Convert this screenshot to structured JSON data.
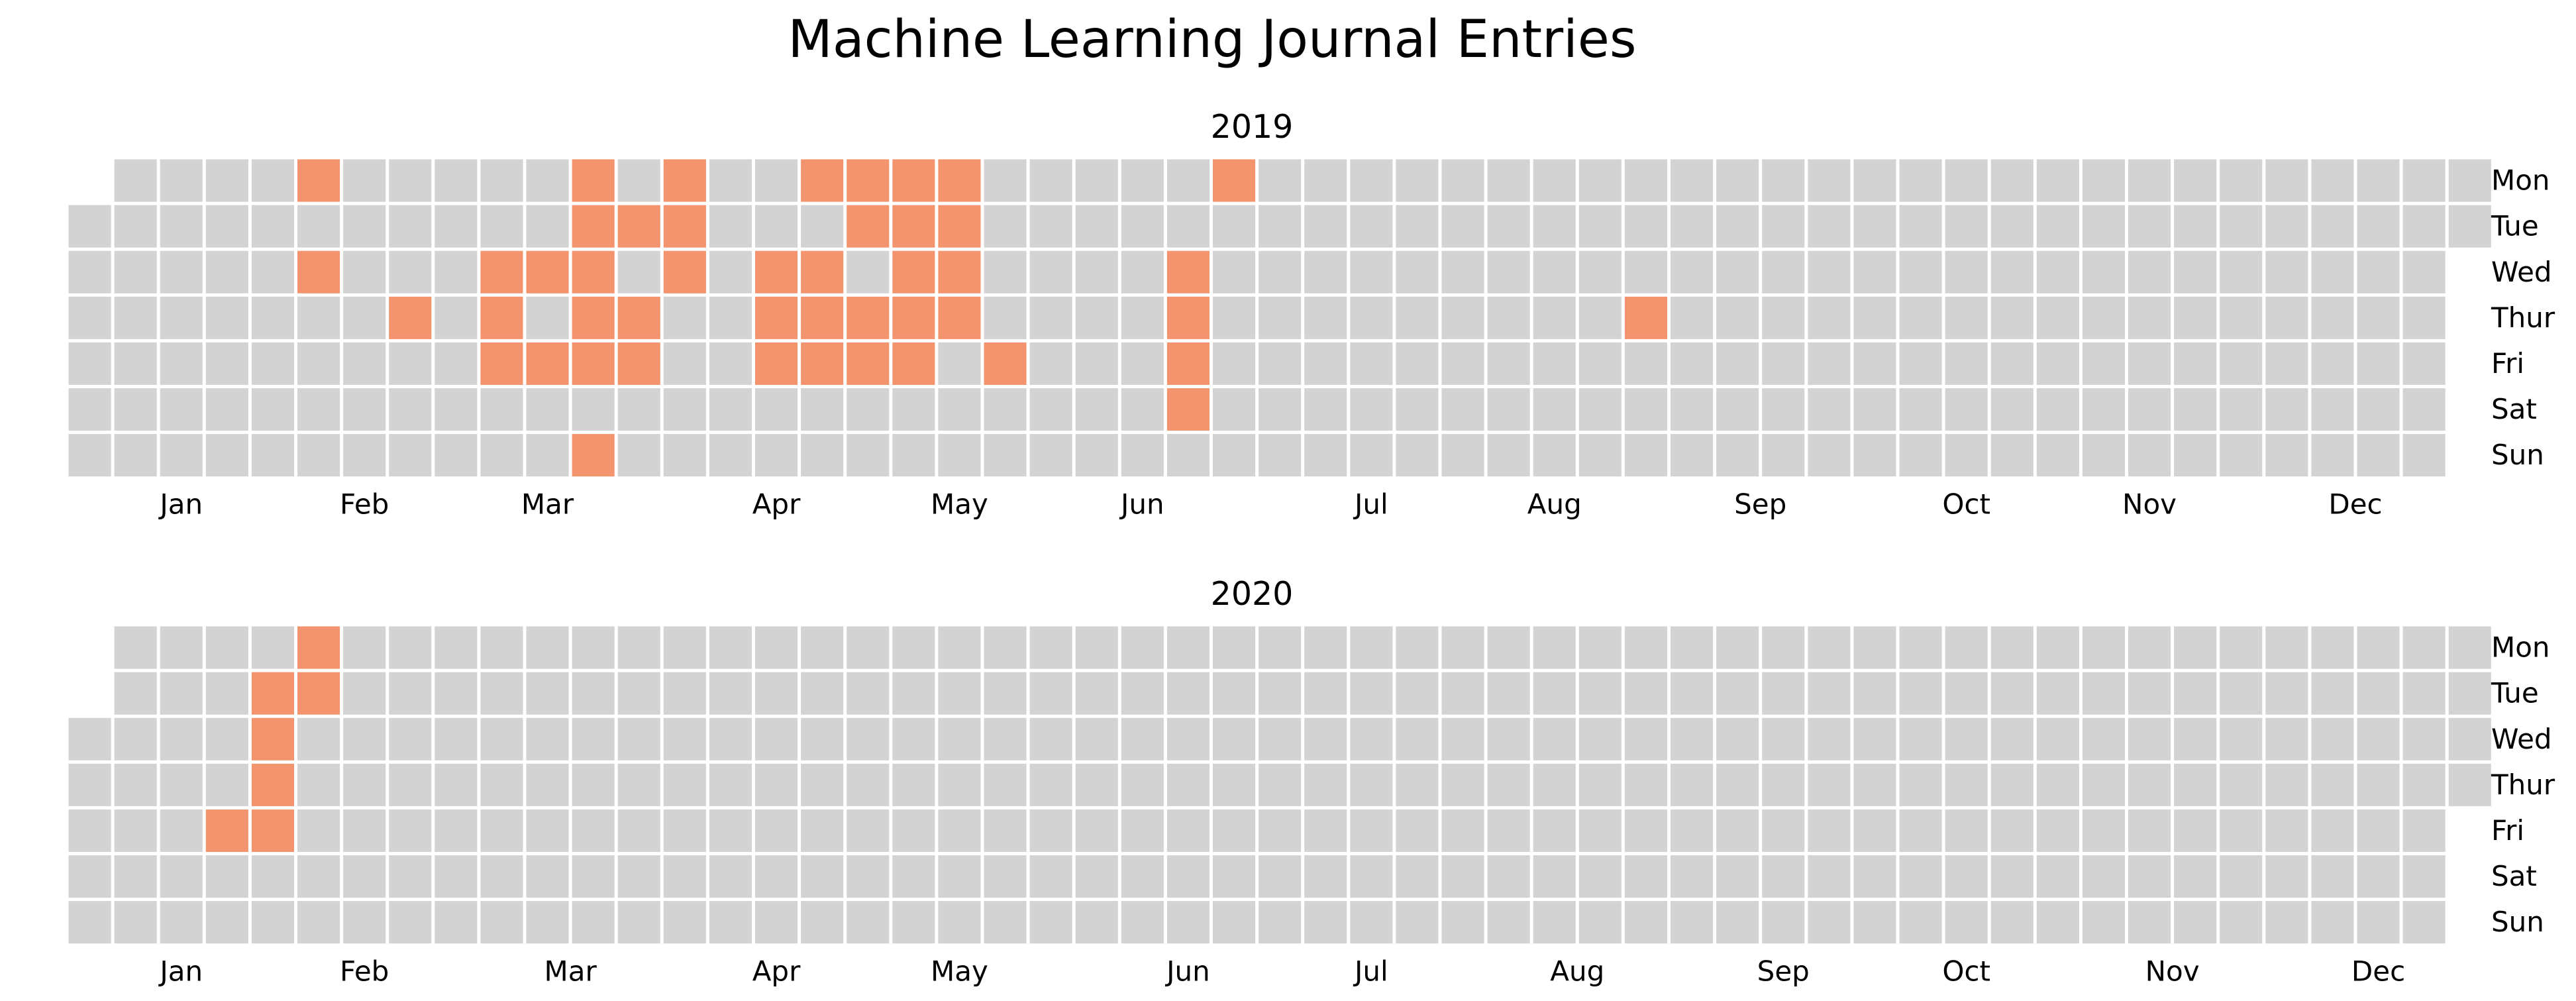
{
  "chart_data": {
    "type": "heatmap",
    "title": "Machine Learning Journal Entries",
    "weekday_labels": [
      "Mon",
      "Tue",
      "Wed",
      "Thur",
      "Fri",
      "Sat",
      "Sun"
    ],
    "month_labels": [
      "Jan",
      "Feb",
      "Mar",
      "Apr",
      "May",
      "Jun",
      "Jul",
      "Aug",
      "Sep",
      "Oct",
      "Nov",
      "Dec"
    ],
    "colors": {
      "empty": "#d3d3d3",
      "entry": "#f4946e",
      "grid": "#ffffff"
    },
    "legend": "none",
    "calendars": [
      {
        "year": "2019",
        "entry_dates": [
          "2019-02-04",
          "2019-02-06",
          "2019-02-21",
          "2019-03-06",
          "2019-03-07",
          "2019-03-08",
          "2019-03-13",
          "2019-03-15",
          "2019-03-18",
          "2019-03-19",
          "2019-03-20",
          "2019-03-21",
          "2019-03-22",
          "2019-03-24",
          "2019-03-26",
          "2019-03-28",
          "2019-03-29",
          "2019-04-01",
          "2019-04-02",
          "2019-04-03",
          "2019-04-17",
          "2019-04-18",
          "2019-04-19",
          "2019-04-22",
          "2019-04-24",
          "2019-04-25",
          "2019-04-26",
          "2019-04-29",
          "2019-04-30",
          "2019-05-02",
          "2019-05-03",
          "2019-05-06",
          "2019-05-07",
          "2019-05-08",
          "2019-05-09",
          "2019-05-10",
          "2019-05-13",
          "2019-05-14",
          "2019-05-15",
          "2019-05-16",
          "2019-05-24",
          "2019-06-19",
          "2019-06-20",
          "2019-06-21",
          "2019-06-22",
          "2019-06-24",
          "2019-08-29"
        ]
      },
      {
        "year": "2020",
        "entry_dates": [
          "2020-01-24",
          "2020-01-28",
          "2020-01-29",
          "2020-01-30",
          "2020-01-31",
          "2020-02-03",
          "2020-02-04"
        ]
      }
    ]
  }
}
